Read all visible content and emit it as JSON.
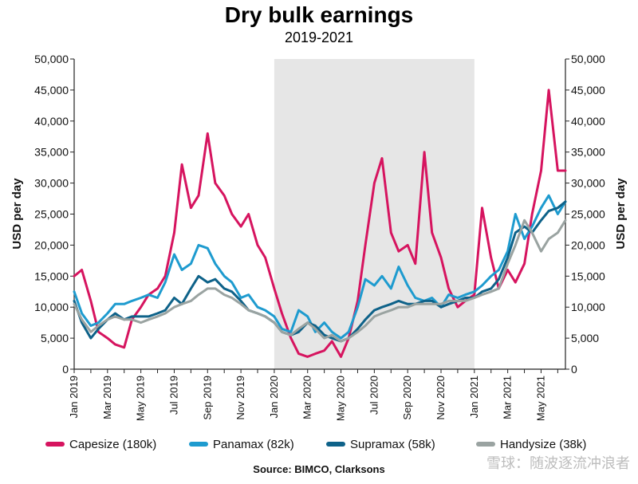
{
  "chart_data": {
    "type": "line",
    "title": "Dry bulk earnings",
    "subtitle": "2019-2021",
    "ylabel_left": "USD per day",
    "ylabel_right": "USD per day",
    "ylim": [
      0,
      50000
    ],
    "yticks": [
      "0",
      "5,000",
      "10,000",
      "15,000",
      "20,000",
      "25,000",
      "30,000",
      "35,000",
      "40,000",
      "45,000",
      "50,000"
    ],
    "ytick_values": [
      0,
      5000,
      10000,
      15000,
      20000,
      25000,
      30000,
      35000,
      40000,
      45000,
      50000
    ],
    "x_axis_type": "month",
    "x_start": "2019-01",
    "x_end": "2021-06-15",
    "xticks": [
      "Jan 2019",
      "Mar 2019",
      "May 2019",
      "Jul 2019",
      "Sep 2019",
      "Nov 2019",
      "Jan 2020",
      "Mar 2020",
      "May 2020",
      "Jul 2020",
      "Sep 2020",
      "Nov 2020",
      "Jan 2021",
      "Mar 2021",
      "May 2021"
    ],
    "shaded_region": {
      "start": "2020-01",
      "end": "2021-01"
    },
    "grid": false,
    "legend_position": "bottom",
    "source": "Source: BIMCO, Clarksons",
    "series": [
      {
        "name": "Capesize (180k)",
        "color": "#d6145f",
        "x": [
          "2019-01-01",
          "2019-01-15",
          "2019-02-01",
          "2019-02-15",
          "2019-03-01",
          "2019-03-15",
          "2019-04-01",
          "2019-04-15",
          "2019-05-01",
          "2019-05-15",
          "2019-06-01",
          "2019-06-15",
          "2019-07-01",
          "2019-07-15",
          "2019-08-01",
          "2019-08-15",
          "2019-09-01",
          "2019-09-15",
          "2019-10-01",
          "2019-10-15",
          "2019-11-01",
          "2019-11-15",
          "2019-12-01",
          "2019-12-15",
          "2020-01-01",
          "2020-01-15",
          "2020-02-01",
          "2020-02-15",
          "2020-03-01",
          "2020-03-15",
          "2020-04-01",
          "2020-04-15",
          "2020-05-01",
          "2020-05-15",
          "2020-06-01",
          "2020-06-15",
          "2020-07-01",
          "2020-07-15",
          "2020-08-01",
          "2020-08-15",
          "2020-09-01",
          "2020-09-15",
          "2020-10-01",
          "2020-10-15",
          "2020-11-01",
          "2020-11-15",
          "2020-12-01",
          "2020-12-15",
          "2021-01-01",
          "2021-01-15",
          "2021-02-01",
          "2021-02-15",
          "2021-03-01",
          "2021-03-15",
          "2021-04-01",
          "2021-04-15",
          "2021-05-01",
          "2021-05-15",
          "2021-06-01",
          "2021-06-15"
        ],
        "values": [
          15000,
          16000,
          11000,
          6000,
          5000,
          4000,
          3500,
          8000,
          10000,
          12000,
          13000,
          15000,
          22000,
          33000,
          26000,
          28000,
          38000,
          30000,
          28000,
          25000,
          23000,
          25000,
          20000,
          18000,
          13000,
          9000,
          5000,
          2500,
          2000,
          2500,
          3000,
          4500,
          2000,
          5000,
          11000,
          20000,
          30000,
          34000,
          22000,
          19000,
          20000,
          17000,
          35000,
          22000,
          18000,
          13000,
          10000,
          11000,
          12000,
          26000,
          18000,
          13000,
          16000,
          14000,
          17000,
          25000,
          32000,
          45000,
          32000,
          32000
        ]
      },
      {
        "name": "Panamax (82k)",
        "color": "#1e9bcf",
        "x": [
          "2019-01-01",
          "2019-01-15",
          "2019-02-01",
          "2019-02-15",
          "2019-03-01",
          "2019-03-15",
          "2019-04-01",
          "2019-04-15",
          "2019-05-01",
          "2019-05-15",
          "2019-06-01",
          "2019-06-15",
          "2019-07-01",
          "2019-07-15",
          "2019-08-01",
          "2019-08-15",
          "2019-09-01",
          "2019-09-15",
          "2019-10-01",
          "2019-10-15",
          "2019-11-01",
          "2019-11-15",
          "2019-12-01",
          "2019-12-15",
          "2020-01-01",
          "2020-01-15",
          "2020-02-01",
          "2020-02-15",
          "2020-03-01",
          "2020-03-15",
          "2020-04-01",
          "2020-04-15",
          "2020-05-01",
          "2020-05-15",
          "2020-06-01",
          "2020-06-15",
          "2020-07-01",
          "2020-07-15",
          "2020-08-01",
          "2020-08-15",
          "2020-09-01",
          "2020-09-15",
          "2020-10-01",
          "2020-10-15",
          "2020-11-01",
          "2020-11-15",
          "2020-12-01",
          "2020-12-15",
          "2021-01-01",
          "2021-01-15",
          "2021-02-01",
          "2021-02-15",
          "2021-03-01",
          "2021-03-15",
          "2021-04-01",
          "2021-04-15",
          "2021-05-01",
          "2021-05-15",
          "2021-06-01",
          "2021-06-15"
        ],
        "values": [
          12500,
          9000,
          7000,
          7500,
          9000,
          10500,
          10500,
          11000,
          11500,
          12000,
          11500,
          14000,
          18500,
          16000,
          17000,
          20000,
          19500,
          17000,
          15000,
          14000,
          11500,
          12000,
          10000,
          9500,
          8500,
          6500,
          6000,
          9500,
          8500,
          6000,
          7500,
          6000,
          5000,
          6000,
          10000,
          14500,
          13500,
          15000,
          13000,
          16500,
          13500,
          11500,
          11000,
          11500,
          10000,
          12000,
          11500,
          12000,
          12500,
          13500,
          15000,
          16000,
          19000,
          25000,
          21000,
          23000,
          26000,
          28000,
          25000,
          27000
        ]
      },
      {
        "name": "Supramax (58k)",
        "color": "#0e6289",
        "x": [
          "2019-01-01",
          "2019-01-15",
          "2019-02-01",
          "2019-02-15",
          "2019-03-01",
          "2019-03-15",
          "2019-04-01",
          "2019-04-15",
          "2019-05-01",
          "2019-05-15",
          "2019-06-01",
          "2019-06-15",
          "2019-07-01",
          "2019-07-15",
          "2019-08-01",
          "2019-08-15",
          "2019-09-01",
          "2019-09-15",
          "2019-10-01",
          "2019-10-15",
          "2019-11-01",
          "2019-11-15",
          "2019-12-01",
          "2019-12-15",
          "2020-01-01",
          "2020-01-15",
          "2020-02-01",
          "2020-02-15",
          "2020-03-01",
          "2020-03-15",
          "2020-04-01",
          "2020-04-15",
          "2020-05-01",
          "2020-05-15",
          "2020-06-01",
          "2020-06-15",
          "2020-07-01",
          "2020-07-15",
          "2020-08-01",
          "2020-08-15",
          "2020-09-01",
          "2020-09-15",
          "2020-10-01",
          "2020-10-15",
          "2020-11-01",
          "2020-11-15",
          "2020-12-01",
          "2020-12-15",
          "2021-01-01",
          "2021-01-15",
          "2021-02-01",
          "2021-02-15",
          "2021-03-01",
          "2021-03-15",
          "2021-04-01",
          "2021-04-15",
          "2021-05-01",
          "2021-05-15",
          "2021-06-01",
          "2021-06-15"
        ],
        "values": [
          11000,
          7500,
          5000,
          6500,
          8000,
          9000,
          8000,
          8500,
          8500,
          8500,
          9000,
          9500,
          11500,
          10500,
          13000,
          15000,
          14000,
          14500,
          13000,
          12500,
          11000,
          9500,
          9000,
          8500,
          7500,
          6000,
          5500,
          6000,
          7500,
          7000,
          5500,
          5000,
          4500,
          5000,
          6500,
          8000,
          9500,
          10000,
          10500,
          11000,
          10500,
          10500,
          11000,
          11000,
          10000,
          10500,
          11000,
          11500,
          11500,
          12500,
          13000,
          14500,
          18000,
          22000,
          23000,
          22000,
          24000,
          25500,
          26000,
          27000
        ]
      },
      {
        "name": "Handysize (38k)",
        "color": "#9aa3a1",
        "x": [
          "2019-01-01",
          "2019-01-15",
          "2019-02-01",
          "2019-02-15",
          "2019-03-01",
          "2019-03-15",
          "2019-04-01",
          "2019-04-15",
          "2019-05-01",
          "2019-05-15",
          "2019-06-01",
          "2019-06-15",
          "2019-07-01",
          "2019-07-15",
          "2019-08-01",
          "2019-08-15",
          "2019-09-01",
          "2019-09-15",
          "2019-10-01",
          "2019-10-15",
          "2019-11-01",
          "2019-11-15",
          "2019-12-01",
          "2019-12-15",
          "2020-01-01",
          "2020-01-15",
          "2020-02-01",
          "2020-02-15",
          "2020-03-01",
          "2020-03-15",
          "2020-04-01",
          "2020-04-15",
          "2020-05-01",
          "2020-05-15",
          "2020-06-01",
          "2020-06-15",
          "2020-07-01",
          "2020-07-15",
          "2020-08-01",
          "2020-08-15",
          "2020-09-01",
          "2020-09-15",
          "2020-10-01",
          "2020-10-15",
          "2020-11-01",
          "2020-11-15",
          "2020-12-01",
          "2020-12-15",
          "2021-01-01",
          "2021-01-15",
          "2021-02-01",
          "2021-02-15",
          "2021-03-01",
          "2021-03-15",
          "2021-04-01",
          "2021-04-15",
          "2021-05-01",
          "2021-05-15",
          "2021-06-01",
          "2021-06-15"
        ],
        "values": [
          10500,
          8000,
          6000,
          7000,
          8000,
          8500,
          8000,
          8000,
          7500,
          8000,
          8500,
          9000,
          10000,
          10500,
          11000,
          12000,
          13000,
          13000,
          12000,
          11500,
          10500,
          9500,
          9000,
          8500,
          7500,
          6000,
          5500,
          6500,
          7500,
          6500,
          5000,
          5500,
          4500,
          5000,
          6000,
          7000,
          8500,
          9000,
          9500,
          10000,
          10000,
          10500,
          10500,
          10500,
          10500,
          11000,
          11000,
          11000,
          11500,
          12000,
          12500,
          13000,
          17000,
          20000,
          24000,
          22000,
          19000,
          21000,
          22000,
          24000
        ]
      }
    ]
  },
  "watermark": "雪球：随波逐流冲浪者"
}
